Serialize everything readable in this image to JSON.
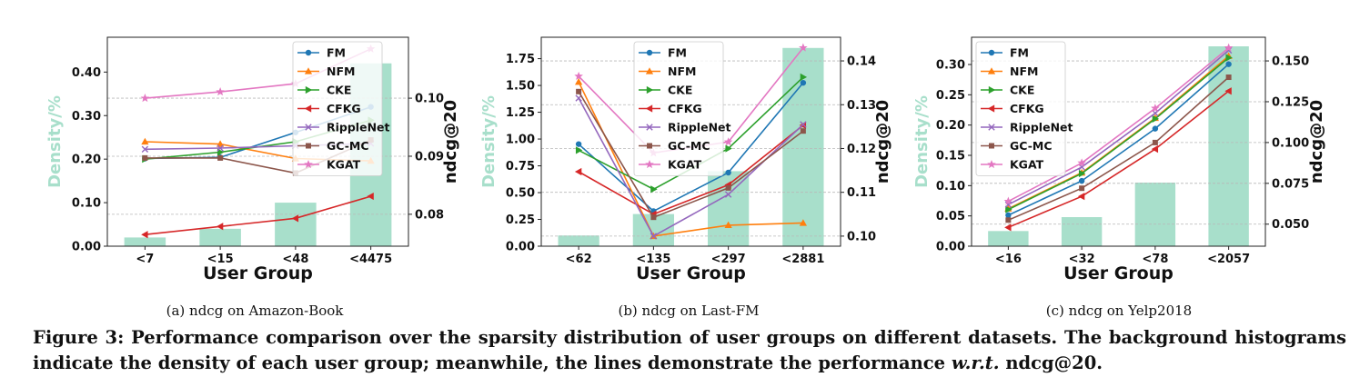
{
  "figure": {
    "caption_lead": "Figure 3: Performance comparison over the sparsity distribution of user groups on different datasets. The background histograms indicate the density of each user group; meanwhile, the lines demonstrate the performance",
    "caption_wrt": "w.r.t.",
    "caption_tail": "ndcg@20."
  },
  "colors": {
    "bar": "#a8dfcb",
    "FM": "#1f77b4",
    "NFM": "#ff7f0e",
    "CKE": "#2ca02c",
    "CFKG": "#d62728",
    "RippleNet": "#9467bd",
    "GC-MC": "#8c564b",
    "KGAT": "#e377c2"
  },
  "chart_data": [
    {
      "type": "bar+line",
      "caption": "(a)  ndcg on Amazon-Book",
      "xlabel": "User Group",
      "ylabel_left": "Density/%",
      "ylabel_right": "ndcg@20",
      "categories": [
        "<7",
        "<15",
        "<48",
        "<4475"
      ],
      "density": [
        0.02,
        0.04,
        0.1,
        0.42
      ],
      "ylim_left": [
        0,
        0.48
      ],
      "yticks_left": [
        "0.00",
        "0.10",
        "0.20",
        "0.30",
        "0.40"
      ],
      "ylim_right": [
        0.0745,
        0.1105
      ],
      "yticks_right": [
        "0.08",
        "0.09",
        "0.10"
      ],
      "legend_position": "upper right",
      "series": [
        {
          "name": "FM",
          "values": [
            0.0896,
            0.0898,
            0.0941,
            0.0985
          ]
        },
        {
          "name": "NFM",
          "values": [
            0.0925,
            0.0921,
            0.0896,
            0.0892
          ]
        },
        {
          "name": "CKE",
          "values": [
            0.0895,
            0.0907,
            0.0925,
            0.0962
          ]
        },
        {
          "name": "CFKG",
          "values": [
            0.0765,
            0.0779,
            0.0793,
            0.0831
          ]
        },
        {
          "name": "RippleNet",
          "values": [
            0.0912,
            0.0914,
            0.0918,
            0.0922
          ]
        },
        {
          "name": "GC-MC",
          "values": [
            0.0897,
            0.0897,
            0.0871,
            0.0928
          ]
        },
        {
          "name": "KGAT",
          "values": [
            0.1,
            0.1011,
            0.1025,
            0.1085
          ]
        }
      ]
    },
    {
      "type": "bar+line",
      "caption": "(b)  ndcg on Last-FM",
      "xlabel": "User Group",
      "ylabel_left": "Density/%",
      "ylabel_right": "ndcg@20",
      "categories": [
        "<62",
        "<135",
        "<297",
        "<2881"
      ],
      "density": [
        0.1,
        0.3,
        0.7,
        1.85
      ],
      "ylim_left": [
        0,
        1.95
      ],
      "yticks_left": [
        "0.00",
        "0.25",
        "0.50",
        "0.75",
        "1.00",
        "1.25",
        "1.50",
        "1.75"
      ],
      "ylim_right": [
        0.0977,
        0.1454
      ],
      "yticks_right": [
        "0.10",
        "0.11",
        "0.12",
        "0.13",
        "0.14"
      ],
      "legend_position": "upper center",
      "series": [
        {
          "name": "FM",
          "values": [
            0.121,
            0.1057,
            0.1145,
            0.135
          ]
        },
        {
          "name": "NFM",
          "values": [
            0.1352,
            0.1,
            0.1025,
            0.103
          ]
        },
        {
          "name": "CKE",
          "values": [
            0.1196,
            0.1107,
            0.12,
            0.1363
          ]
        },
        {
          "name": "CFKG",
          "values": [
            0.1147,
            0.105,
            0.1117,
            0.1253
          ]
        },
        {
          "name": "RippleNet",
          "values": [
            0.1315,
            0.1,
            0.1095,
            0.1255
          ]
        },
        {
          "name": "GC-MC",
          "values": [
            0.133,
            0.1043,
            0.111,
            0.124
          ]
        },
        {
          "name": "KGAT",
          "values": [
            0.1365,
            0.119,
            0.1215,
            0.143
          ]
        }
      ]
    },
    {
      "type": "bar+line",
      "caption": "(c)  ndcg on Yelp2018",
      "xlabel": "User Group",
      "ylabel_left": "Density/%",
      "ylabel_right": "ndcg@20",
      "categories": [
        "<16",
        "<32",
        "<78",
        "<2057"
      ],
      "density": [
        0.025,
        0.048,
        0.105,
        0.33
      ],
      "ylim_left": [
        0,
        0.345
      ],
      "yticks_left": [
        "0.00",
        "0.05",
        "0.10",
        "0.15",
        "0.20",
        "0.25",
        "0.30"
      ],
      "ylim_right": [
        0.0365,
        0.1645
      ],
      "yticks_right": [
        "0.050",
        "0.075",
        "0.100",
        "0.125",
        "0.150"
      ],
      "legend_position": "upper left",
      "series": [
        {
          "name": "FM",
          "values": [
            0.0555,
            0.0765,
            0.1085,
            0.148
          ]
        },
        {
          "name": "NFM",
          "values": [
            0.0595,
            0.0815,
            0.115,
            0.153
          ]
        },
        {
          "name": "CKE",
          "values": [
            0.059,
            0.081,
            0.1145,
            0.152
          ]
        },
        {
          "name": "CFKG",
          "values": [
            0.048,
            0.067,
            0.096,
            0.1315
          ]
        },
        {
          "name": "RippleNet",
          "values": [
            0.062,
            0.085,
            0.118,
            0.1565
          ]
        },
        {
          "name": "GC-MC",
          "values": [
            0.0525,
            0.072,
            0.1,
            0.14
          ]
        },
        {
          "name": "KGAT",
          "values": [
            0.064,
            0.0875,
            0.121,
            0.158
          ]
        }
      ]
    }
  ]
}
